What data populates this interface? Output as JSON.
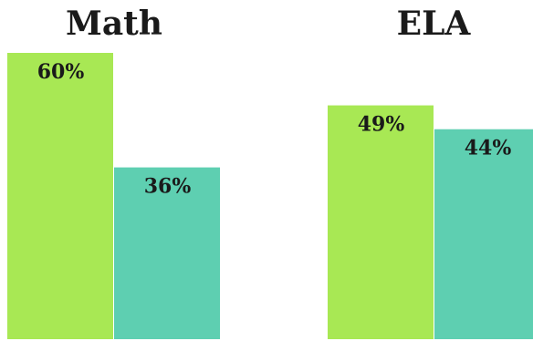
{
  "chart_data": {
    "type": "bar",
    "ylim": [
      0,
      60
    ],
    "grid": false,
    "legend": "none",
    "colors": [
      "#a8e854",
      "#5ecfb1"
    ],
    "panels": [
      {
        "title": "Math",
        "values": [
          60,
          36
        ],
        "labels": [
          "60%",
          "36%"
        ]
      },
      {
        "title": "ELA",
        "values": [
          49,
          44
        ],
        "labels": [
          "49%",
          "44%"
        ]
      }
    ]
  }
}
